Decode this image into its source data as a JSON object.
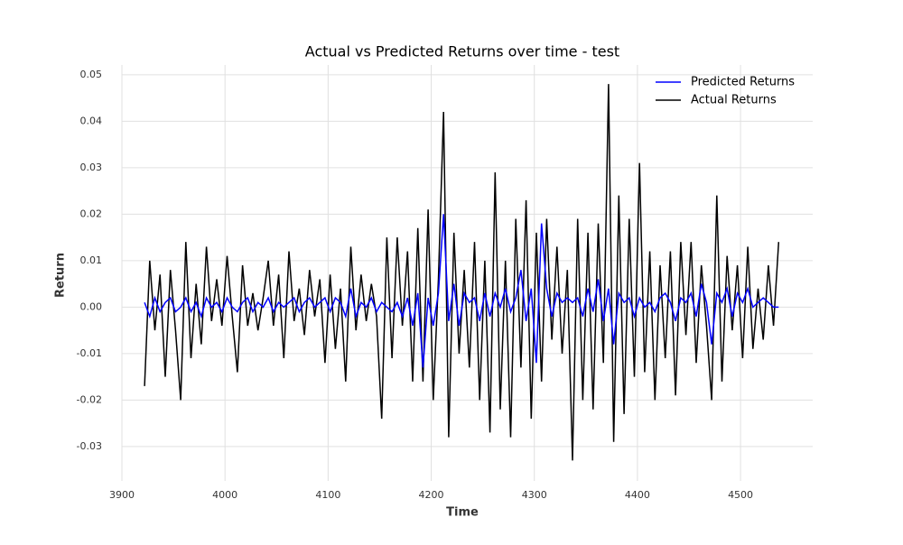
{
  "chart_data": {
    "type": "line",
    "title": "Actual vs Predicted Returns over time - test",
    "x_label": "Time",
    "y_label": "Return",
    "x": [
      3922,
      3927,
      3932,
      3937,
      3942,
      3947,
      3952,
      3957,
      3962,
      3967,
      3972,
      3977,
      3982,
      3987,
      3992,
      3997,
      4002,
      4007,
      4012,
      4017,
      4022,
      4027,
      4032,
      4037,
      4042,
      4047,
      4052,
      4057,
      4062,
      4067,
      4072,
      4077,
      4082,
      4087,
      4092,
      4097,
      4102,
      4107,
      4112,
      4117,
      4122,
      4127,
      4132,
      4137,
      4142,
      4147,
      4152,
      4157,
      4162,
      4167,
      4172,
      4177,
      4182,
      4187,
      4192,
      4197,
      4202,
      4207,
      4212,
      4217,
      4222,
      4227,
      4232,
      4237,
      4242,
      4247,
      4252,
      4257,
      4262,
      4267,
      4272,
      4277,
      4282,
      4287,
      4292,
      4297,
      4302,
      4307,
      4312,
      4317,
      4322,
      4327,
      4332,
      4337,
      4342,
      4347,
      4352,
      4357,
      4362,
      4367,
      4372,
      4377,
      4382,
      4387,
      4392,
      4397,
      4402,
      4407,
      4412,
      4417,
      4422,
      4427,
      4432,
      4437,
      4442,
      4447,
      4452,
      4457,
      4462,
      4467,
      4472,
      4477,
      4482,
      4487,
      4492,
      4497,
      4502,
      4507,
      4512,
      4517,
      4522,
      4527,
      4532,
      4537
    ],
    "series": [
      {
        "name": "Predicted Returns",
        "color": "#0000ff",
        "values": [
          0.001,
          -0.002,
          0.002,
          -0.001,
          0.001,
          0.002,
          -0.001,
          0.0,
          0.002,
          -0.001,
          0.001,
          -0.002,
          0.002,
          0.0,
          0.001,
          -0.001,
          0.002,
          0.0,
          -0.001,
          0.001,
          0.002,
          -0.001,
          0.001,
          0.0,
          0.002,
          -0.001,
          0.001,
          0.0,
          0.001,
          0.002,
          -0.001,
          0.001,
          0.002,
          0.0,
          0.001,
          0.002,
          -0.001,
          0.002,
          0.001,
          -0.002,
          0.004,
          -0.002,
          0.001,
          0.0,
          0.002,
          -0.001,
          0.001,
          0.0,
          -0.001,
          0.001,
          -0.002,
          0.002,
          -0.004,
          0.003,
          -0.013,
          0.002,
          -0.004,
          0.003,
          0.02,
          -0.003,
          0.005,
          -0.004,
          0.003,
          0.001,
          0.002,
          -0.003,
          0.003,
          -0.002,
          0.003,
          0.0,
          0.004,
          -0.001,
          0.002,
          0.008,
          -0.003,
          0.004,
          -0.012,
          0.018,
          0.004,
          -0.002,
          0.003,
          0.001,
          0.002,
          0.001,
          0.002,
          -0.002,
          0.004,
          -0.001,
          0.006,
          -0.003,
          0.004,
          -0.008,
          0.003,
          0.001,
          0.002,
          -0.002,
          0.002,
          0.0,
          0.001,
          -0.001,
          0.002,
          0.003,
          0.001,
          -0.003,
          0.002,
          0.001,
          0.003,
          -0.002,
          0.005,
          0.001,
          -0.008,
          0.003,
          0.001,
          0.004,
          -0.002,
          0.003,
          0.001,
          0.004,
          0.0,
          0.001,
          0.002,
          0.001,
          0.0,
          0.0
        ]
      },
      {
        "name": "Actual Returns",
        "color": "#000000",
        "values": [
          -0.017,
          0.01,
          -0.005,
          0.007,
          -0.015,
          0.008,
          -0.005,
          -0.02,
          0.014,
          -0.011,
          0.005,
          -0.008,
          0.013,
          -0.003,
          0.006,
          -0.004,
          0.011,
          -0.002,
          -0.014,
          0.009,
          -0.004,
          0.003,
          -0.005,
          0.002,
          0.01,
          -0.004,
          0.007,
          -0.011,
          0.012,
          -0.003,
          0.004,
          -0.006,
          0.008,
          -0.002,
          0.006,
          -0.012,
          0.007,
          -0.009,
          0.004,
          -0.016,
          0.013,
          -0.005,
          0.007,
          -0.003,
          0.005,
          -0.002,
          -0.024,
          0.015,
          -0.011,
          0.015,
          -0.004,
          0.012,
          -0.016,
          0.017,
          -0.016,
          0.021,
          -0.02,
          0.006,
          0.042,
          -0.028,
          0.016,
          -0.01,
          0.008,
          -0.013,
          0.014,
          -0.02,
          0.01,
          -0.027,
          0.029,
          -0.022,
          0.01,
          -0.028,
          0.019,
          -0.013,
          0.023,
          -0.024,
          0.016,
          -0.016,
          0.019,
          -0.007,
          0.013,
          -0.01,
          0.008,
          -0.033,
          0.019,
          -0.02,
          0.016,
          -0.022,
          0.018,
          -0.012,
          0.048,
          -0.029,
          0.024,
          -0.023,
          0.019,
          -0.015,
          0.031,
          -0.014,
          0.012,
          -0.02,
          0.009,
          -0.011,
          0.012,
          -0.019,
          0.014,
          -0.006,
          0.014,
          -0.012,
          0.009,
          -0.004,
          -0.02,
          0.024,
          -0.016,
          0.011,
          -0.005,
          0.009,
          -0.011,
          0.013,
          -0.009,
          0.004,
          -0.007,
          0.009,
          -0.004,
          0.014
        ]
      }
    ],
    "xlim": [
      3900,
      4570
    ],
    "xticks": [
      3900,
      4000,
      4100,
      4200,
      4300,
      4400,
      4500
    ],
    "ylim": [
      -0.0374,
      0.0521
    ],
    "yticks": [
      -0.03,
      -0.02,
      -0.01,
      {
        "value": 0,
        "label": "0.00"
      },
      0.01,
      0.02,
      0.03,
      0.04,
      0.05
    ],
    "grid": true,
    "legend": "upper right"
  }
}
